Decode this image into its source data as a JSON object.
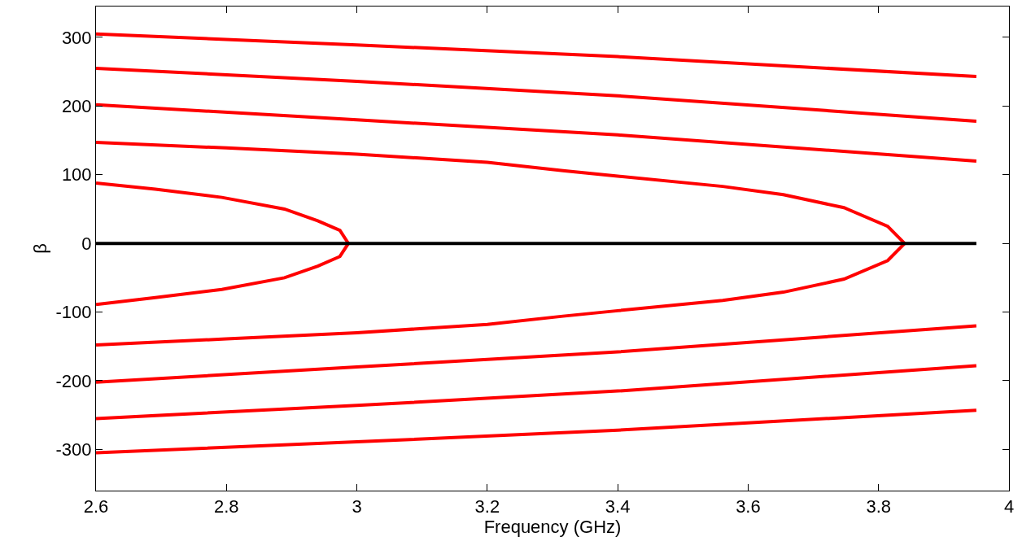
{
  "chart_data": {
    "type": "line",
    "xlabel": "Frequency (GHz)",
    "ylabel": "β",
    "xlim": [
      2.6,
      4
    ],
    "ylim": [
      -360,
      345
    ],
    "xticks": [
      2.6,
      2.8,
      3,
      3.2,
      3.4,
      3.6,
      3.8,
      4
    ],
    "yticks": [
      -300,
      -200,
      -100,
      0,
      100,
      200,
      300
    ],
    "grid": false,
    "marker": "none",
    "line_style": "solid",
    "series": [
      {
        "color": "#ff0000",
        "x": [
          2.6,
          3.0,
          3.4,
          3.95
        ],
        "values": [
          305,
          289,
          272,
          243
        ]
      },
      {
        "color": "#ff0000",
        "x": [
          2.6,
          3.0,
          3.4,
          3.95
        ],
        "values": [
          255,
          236,
          215,
          178
        ]
      },
      {
        "color": "#ff0000",
        "x": [
          2.6,
          3.0,
          3.4,
          3.95
        ],
        "values": [
          202,
          180,
          158,
          120
        ]
      },
      {
        "color": "#ff0000",
        "x": [
          2.6,
          2.8,
          3.0,
          3.2,
          3.316,
          3.4,
          3.561,
          3.654,
          3.747,
          3.814,
          3.84,
          3.814,
          3.747,
          3.654,
          3.561,
          3.4,
          3.316,
          3.2,
          3.0,
          2.8,
          2.6
        ],
        "values": [
          147,
          139,
          130,
          118,
          106,
          98,
          83,
          71,
          52,
          25,
          0,
          -25,
          -52,
          -71,
          -83,
          -98,
          -106,
          -118,
          -130,
          -139,
          -148
        ]
      },
      {
        "color": "#ff0000",
        "x": [
          2.6,
          2.691,
          2.793,
          2.889,
          2.94,
          2.974,
          2.987,
          2.974,
          2.94,
          2.889,
          2.793,
          2.691,
          2.6
        ],
        "values": [
          88,
          79,
          67,
          50,
          33,
          19,
          0,
          -19,
          -33,
          -50,
          -67,
          -79,
          -89
        ]
      },
      {
        "color": "#ff0000",
        "x": [
          2.6,
          3.0,
          3.4,
          3.95
        ],
        "values": [
          -202,
          -180,
          -158,
          -120
        ]
      },
      {
        "color": "#ff0000",
        "x": [
          2.6,
          3.0,
          3.4,
          3.95
        ],
        "values": [
          -255,
          -236,
          -215,
          -178
        ]
      },
      {
        "color": "#ff0000",
        "x": [
          2.6,
          3.0,
          3.4,
          3.95
        ],
        "values": [
          -305,
          -289,
          -272,
          -243
        ]
      },
      {
        "color": "#000000",
        "x": [
          2.6,
          3.95
        ],
        "values": [
          0,
          0
        ]
      }
    ]
  }
}
